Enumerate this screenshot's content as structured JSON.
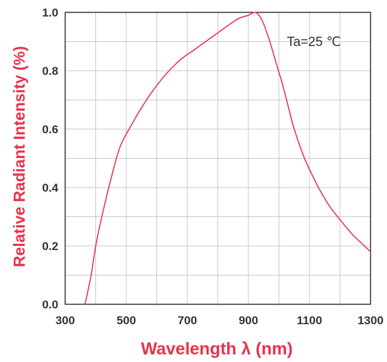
{
  "chart_data": {
    "type": "line",
    "title": "",
    "xlabel": "Wavelength λ (nm)",
    "ylabel": "Relative Radiant Intensity (%)",
    "annotation": "Ta=25 ℃",
    "xlim": [
      300,
      1300
    ],
    "ylim": [
      0.0,
      1.0
    ],
    "x_ticks": [
      300,
      500,
      700,
      900,
      1100,
      1300
    ],
    "x_tick_labels": [
      "300",
      "500",
      "700",
      "900",
      "1100",
      "1300"
    ],
    "y_ticks": [
      0.0,
      0.2,
      0.4,
      0.6,
      0.8,
      1.0
    ],
    "y_tick_labels": [
      "0.0",
      "0.2",
      "0.4",
      "0.6",
      "0.8",
      "1.0"
    ],
    "grid": true,
    "series": [
      {
        "color": "#e8324a",
        "x": [
          365,
          385,
          400,
          420,
          450,
          480,
          520,
          560,
          600,
          640,
          680,
          720,
          760,
          800,
          840,
          870,
          900,
          920,
          935,
          950,
          970,
          990,
          1010,
          1030,
          1050,
          1080,
          1110,
          1140,
          1170,
          1200,
          1240,
          1270,
          1300
        ],
        "y": [
          0.0,
          0.1,
          0.2,
          0.3,
          0.43,
          0.54,
          0.62,
          0.69,
          0.75,
          0.8,
          0.84,
          0.87,
          0.9,
          0.93,
          0.96,
          0.98,
          0.99,
          1.0,
          0.99,
          0.96,
          0.9,
          0.83,
          0.76,
          0.68,
          0.6,
          0.51,
          0.44,
          0.38,
          0.33,
          0.29,
          0.24,
          0.21,
          0.18
        ]
      }
    ]
  },
  "colors": {
    "background": "#ffffff",
    "grid": "#c8c8c8",
    "axis": "#000000",
    "curve": "#e8324a",
    "label_text": "#e8324a",
    "tick_text": "#333333",
    "annotation_text": "#333333"
  }
}
